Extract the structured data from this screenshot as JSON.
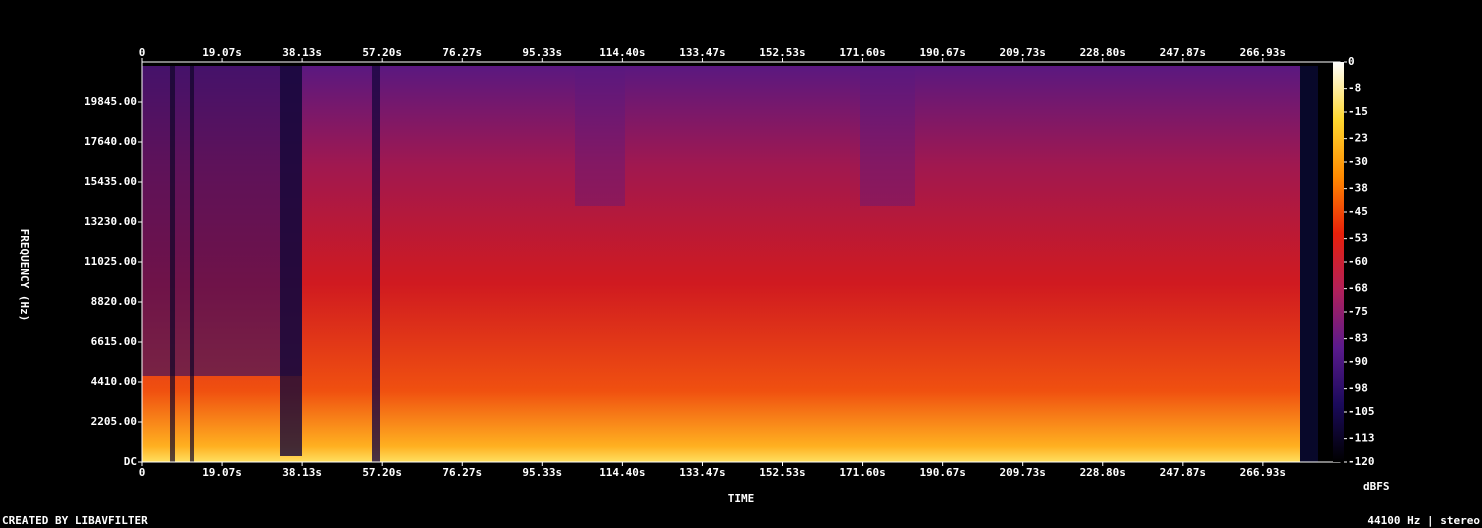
{
  "chart_data": {
    "type": "spectrogram",
    "x_label": "TIME",
    "y_label": "FREQUENCY (Hz)",
    "colorbar_label": "dBFS",
    "footer_left": "CREATED BY LIBAVFILTER",
    "footer_right": "44100 Hz | stereo",
    "xlim": [
      0,
      285.3
    ],
    "xticks": [
      0,
      {
        "value": 19.07,
        "label": "19.07s"
      },
      {
        "value": 38.13,
        "label": "38.13s"
      },
      {
        "value": 57.2,
        "label": "57.20s"
      },
      {
        "value": 76.27,
        "label": "76.27s"
      },
      {
        "value": 95.33,
        "label": "95.33s"
      },
      {
        "value": 114.4,
        "label": "114.40s"
      },
      {
        "value": 133.47,
        "label": "133.47s"
      },
      {
        "value": 152.53,
        "label": "152.53s"
      },
      {
        "value": 171.6,
        "label": "171.60s"
      },
      {
        "value": 190.67,
        "label": "190.67s"
      },
      {
        "value": 209.73,
        "label": "209.73s"
      },
      {
        "value": 228.8,
        "label": "228.80s"
      },
      {
        "value": 247.87,
        "label": "247.87s"
      },
      {
        "value": 266.93,
        "label": "266.93s"
      }
    ],
    "ylim": [
      0,
      22050
    ],
    "yticks": [
      {
        "value": 0,
        "label": "DC"
      },
      {
        "value": 2205,
        "label": "2205.00"
      },
      {
        "value": 4410,
        "label": "4410.00"
      },
      {
        "value": 6615,
        "label": "6615.00"
      },
      {
        "value": 8820,
        "label": "8820.00"
      },
      {
        "value": 11025,
        "label": "11025.00"
      },
      {
        "value": 13230,
        "label": "13230.00"
      },
      {
        "value": 15435,
        "label": "15435.00"
      },
      {
        "value": 17640,
        "label": "17640.00"
      },
      {
        "value": 19845,
        "label": "19845.00"
      }
    ],
    "clim": [
      -120,
      0
    ],
    "cticks": [
      0,
      -8,
      -15,
      -23,
      -30,
      -38,
      -45,
      -53,
      -60,
      -68,
      -75,
      -83,
      -90,
      -98,
      -105,
      -113,
      -120
    ],
    "colormap": [
      "#000000",
      "#1a0a5a",
      "#5a1a8c",
      "#b0205a",
      "#e8200a",
      "#ff8a00",
      "#ffd830",
      "#ffffff"
    ]
  }
}
